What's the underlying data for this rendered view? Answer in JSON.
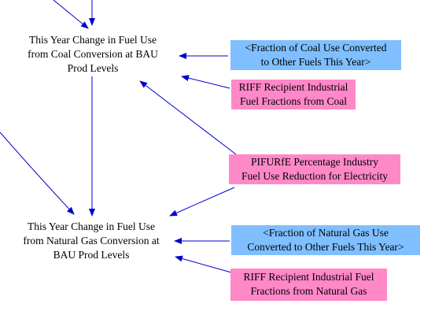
{
  "nodes": {
    "coal_change": {
      "lines": [
        "This Year Change in Fuel Use",
        "from Coal Conversion at BAU",
        "Prod Levels"
      ],
      "style": "plain"
    },
    "gas_change": {
      "lines": [
        "This Year Change in Fuel Use",
        "from Natural Gas Conversion at",
        "BAU Prod Levels"
      ],
      "style": "plain"
    },
    "coal_fraction": {
      "lines": [
        "<Fraction of Coal Use Converted",
        "to Other Fuels This Year>"
      ],
      "style": "blue"
    },
    "riff_coal": {
      "lines": [
        "RIFF Recipient Industrial",
        "Fuel Fractions from Coal"
      ],
      "style": "pink"
    },
    "pifurfe": {
      "lines": [
        "PIFURfE Percentage Industry",
        "Fuel Use Reduction for Electricity"
      ],
      "style": "pink"
    },
    "gas_fraction": {
      "lines": [
        "<Fraction of Natural Gas Use",
        "Converted to Other Fuels This Year>"
      ],
      "style": "blue"
    },
    "riff_gas": {
      "lines": [
        "RIFF Recipient Industrial Fuel",
        "Fractions from Natural Gas"
      ],
      "style": "pink"
    }
  },
  "colors": {
    "arrow": "#0000cc",
    "input_blue": "#7fbfff",
    "input_pink": "#ff88c8",
    "text": "#000000"
  }
}
